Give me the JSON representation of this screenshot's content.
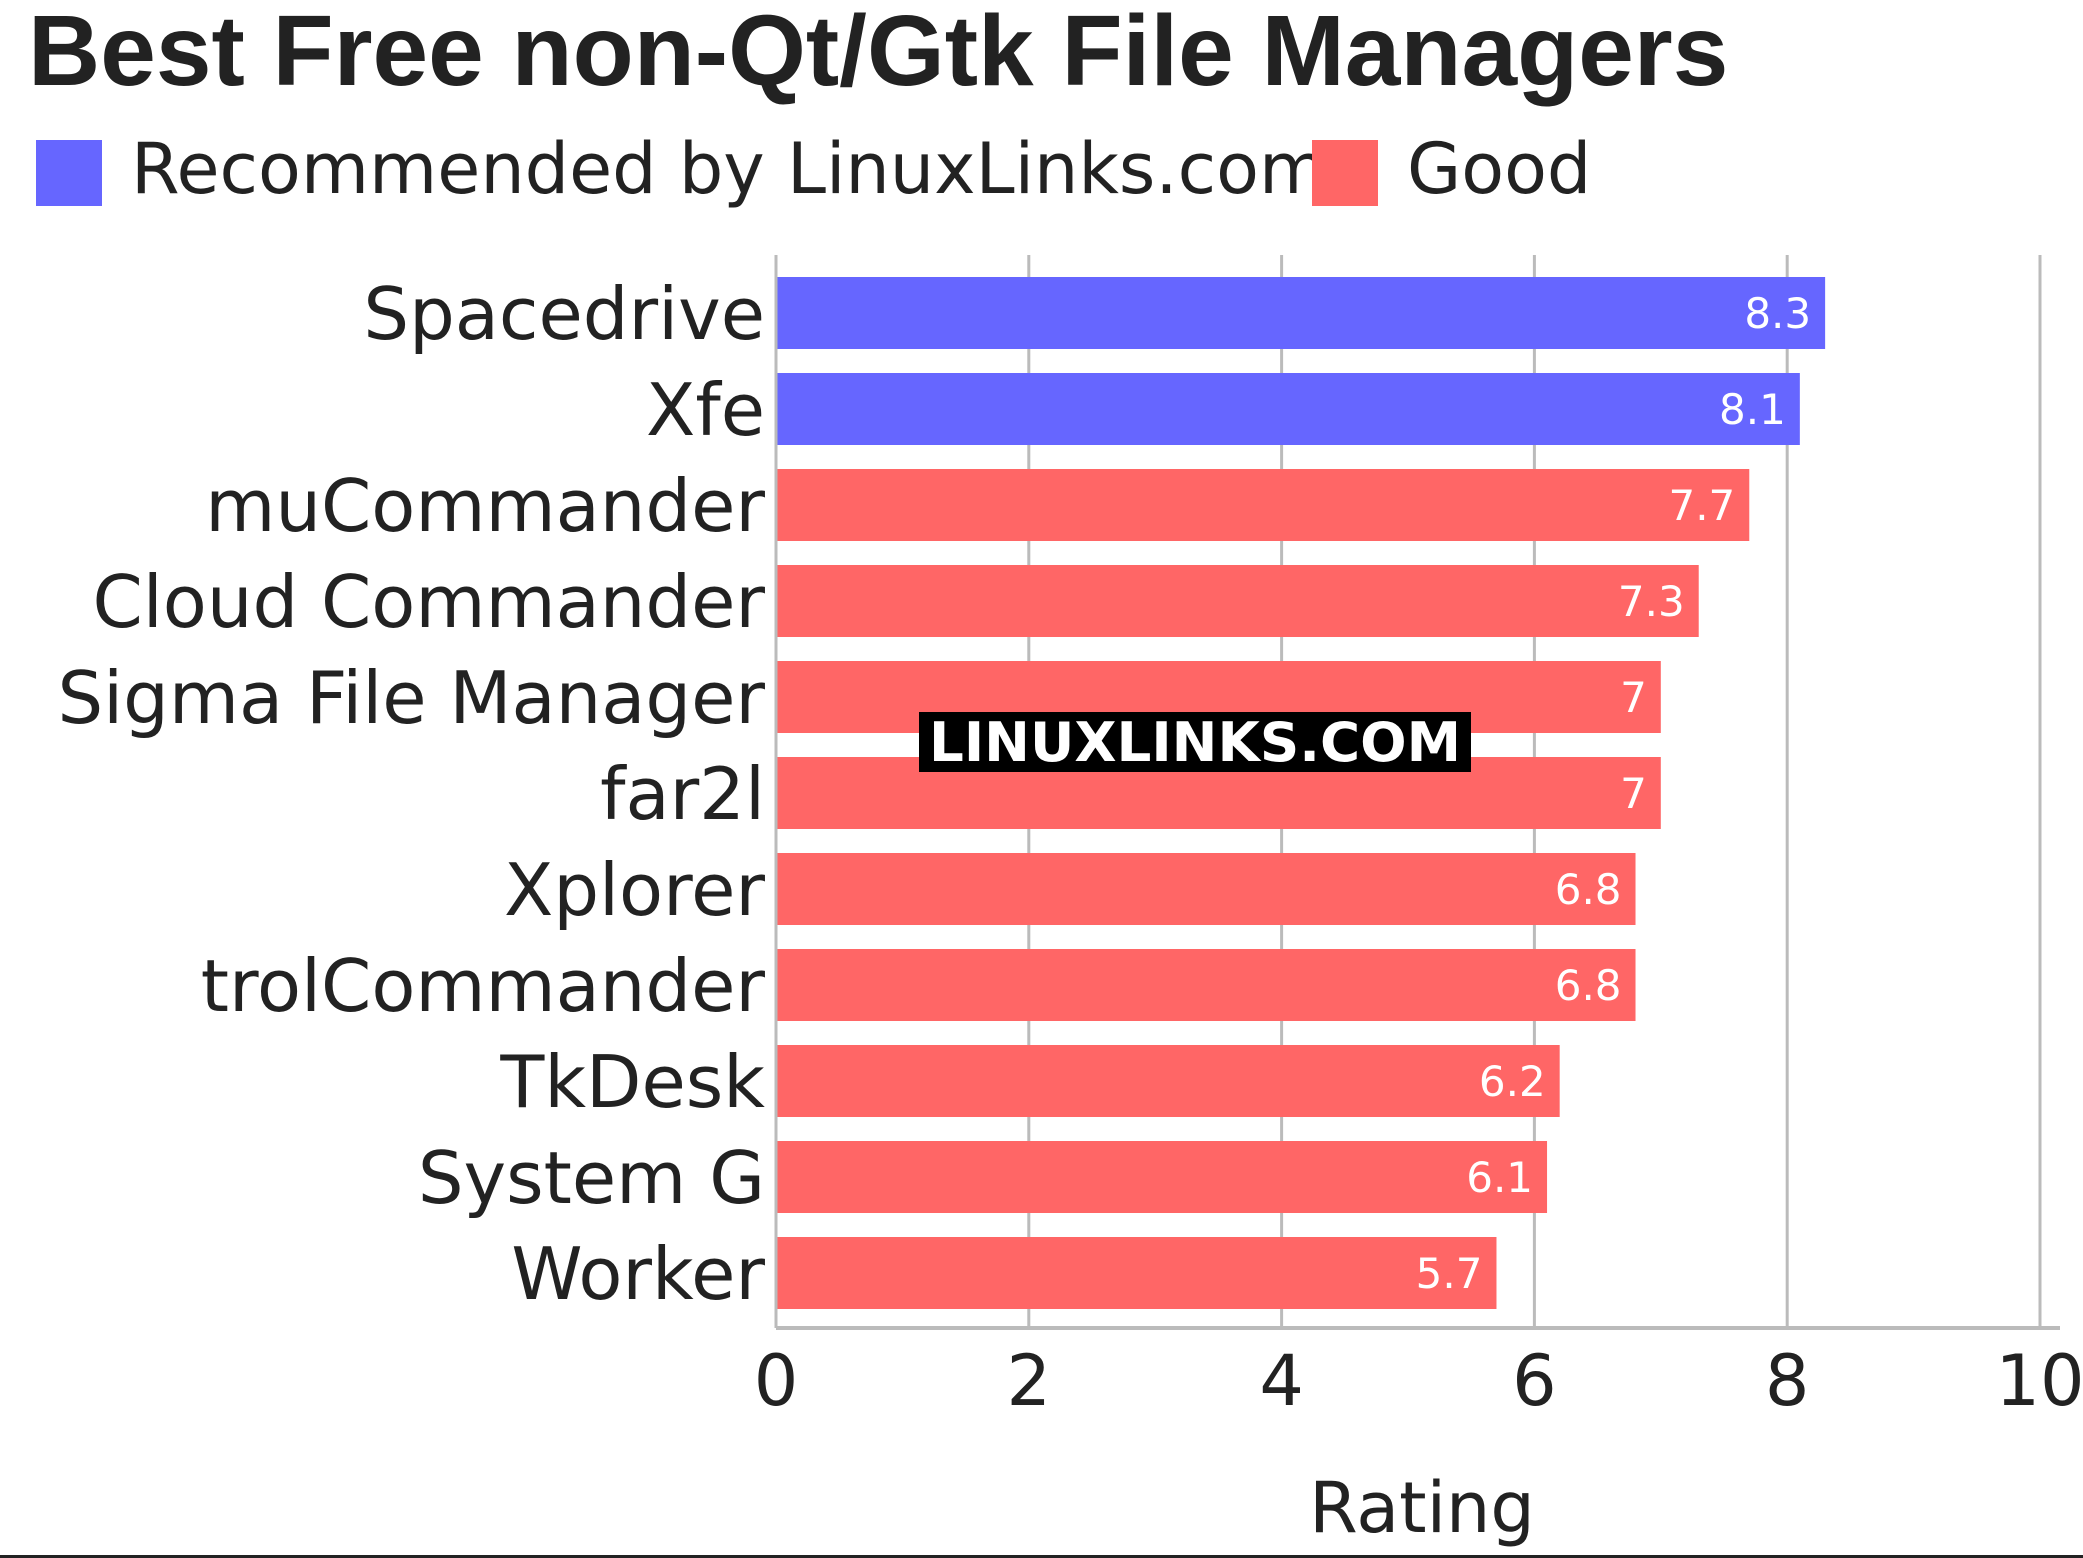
{
  "title": "Best Free non-Qt/Gtk File Managers",
  "legend": [
    {
      "label": "Recommended by LinuxLinks.com",
      "color": "#6666ff"
    },
    {
      "label": "Good",
      "color": "#ff6666"
    }
  ],
  "watermark": "LINUXLINKS.COM",
  "chart_data": {
    "type": "bar",
    "orientation": "horizontal",
    "title": "Best Free non-Qt/Gtk File Managers",
    "xlabel": "Rating",
    "ylabel": "",
    "xlim": [
      0,
      10
    ],
    "x_ticks": [
      0,
      2,
      4,
      6,
      8,
      10
    ],
    "grid": true,
    "legend_position": "top-left",
    "categories": [
      "Spacedrive",
      "Xfe",
      "muCommander",
      "Cloud Commander",
      "Sigma File Manager",
      "far2l",
      "Xplorer",
      "trolCommander",
      "TkDesk",
      "System G",
      "Worker"
    ],
    "values": [
      8.3,
      8.1,
      7.7,
      7.3,
      7,
      7,
      6.8,
      6.8,
      6.2,
      6.1,
      5.7
    ],
    "value_labels": [
      "8.3",
      "8.1",
      "7.7",
      "7.3",
      "7",
      "7",
      "6.8",
      "6.8",
      "6.2",
      "6.1",
      "5.7"
    ],
    "bar_groups": [
      "Recommended by LinuxLinks.com",
      "Recommended by LinuxLinks.com",
      "Good",
      "Good",
      "Good",
      "Good",
      "Good",
      "Good",
      "Good",
      "Good",
      "Good"
    ],
    "colors": {
      "Recommended by LinuxLinks.com": "#6666ff",
      "Good": "#ff6666"
    }
  }
}
